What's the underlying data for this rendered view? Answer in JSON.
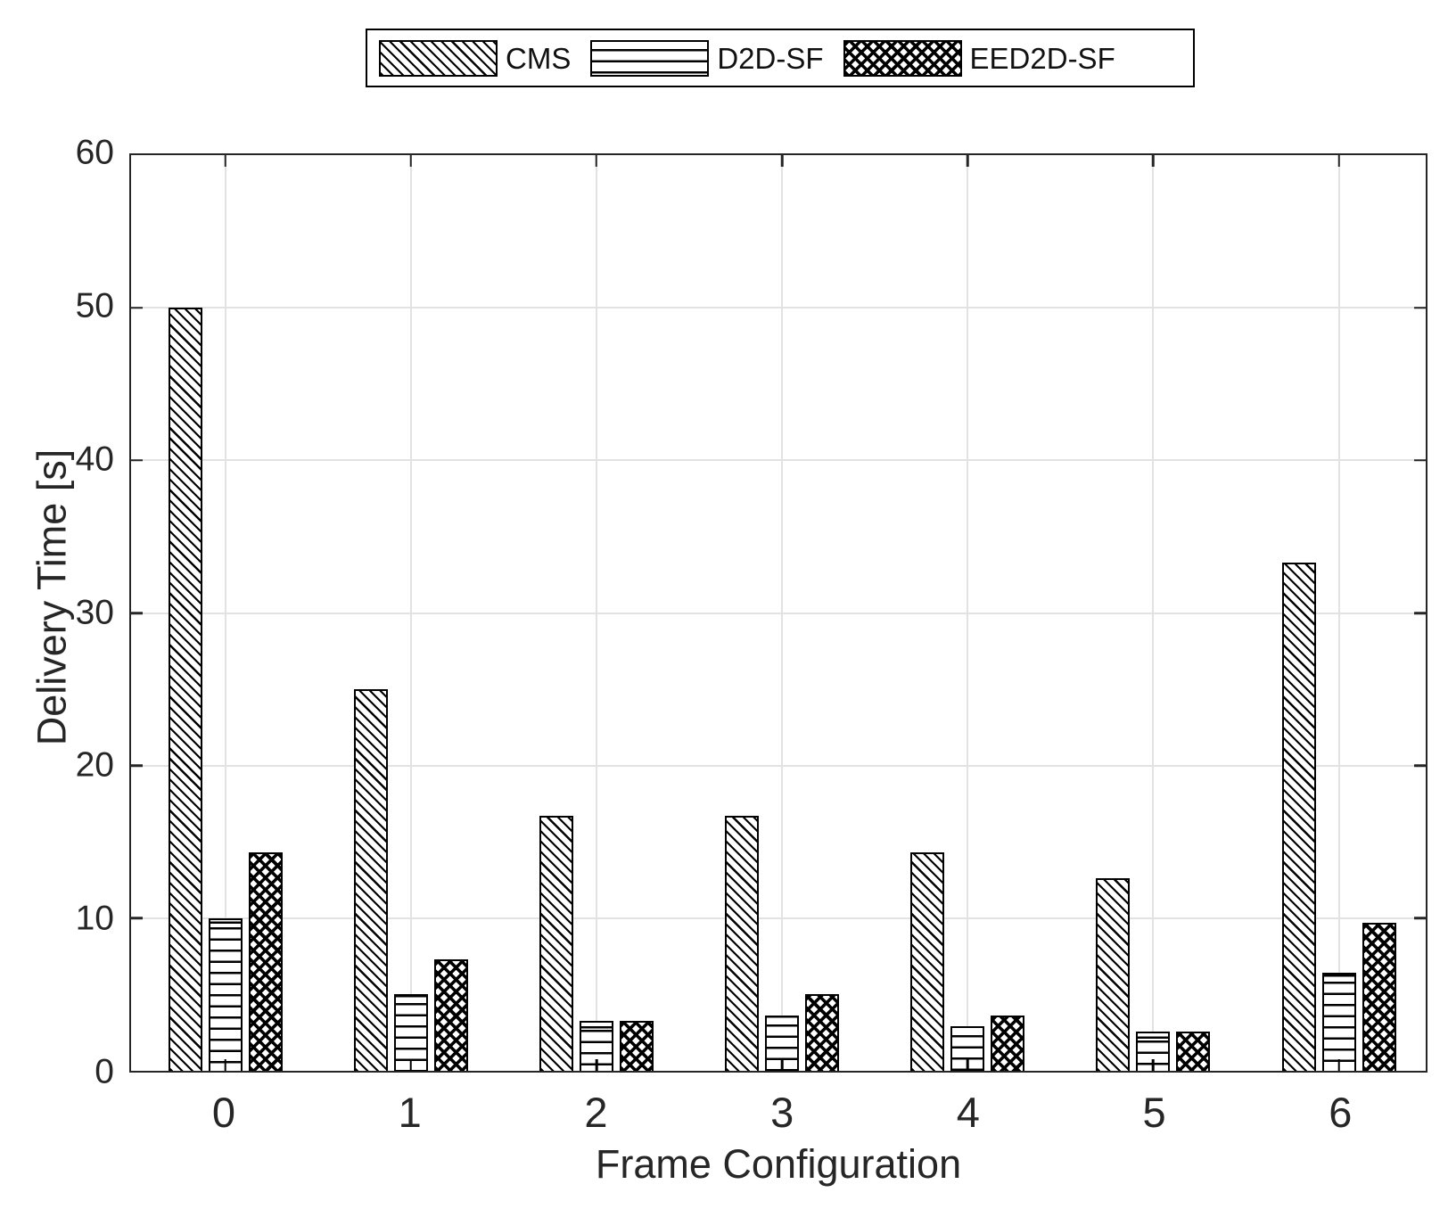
{
  "chart_data": {
    "type": "bar",
    "title": "",
    "xlabel": "Frame Configuration",
    "ylabel": "Delivery Time [s]",
    "categories": [
      "0",
      "1",
      "2",
      "3",
      "4",
      "5",
      "6"
    ],
    "series": [
      {
        "name": "CMS",
        "pattern": "diagonal-hatch",
        "values": [
          50.0,
          25.0,
          16.7,
          16.7,
          14.3,
          12.6,
          33.3
        ]
      },
      {
        "name": "D2D-SF",
        "pattern": "horizontal-lines",
        "values": [
          10.0,
          5.0,
          3.3,
          3.6,
          2.9,
          2.6,
          6.4
        ]
      },
      {
        "name": "EED2D-SF",
        "pattern": "crosshatch",
        "values": [
          14.3,
          7.3,
          3.3,
          5.0,
          3.6,
          2.6,
          9.7
        ]
      }
    ],
    "y_ticks": [
      0,
      10,
      20,
      30,
      40,
      50,
      60
    ],
    "ylim": [
      0,
      60
    ],
    "grid": true,
    "legend_position": "top-center",
    "bar_fill": "#ffffff",
    "bar_border": "#000000"
  },
  "legend": {
    "items": [
      {
        "label": "CMS",
        "pattern": "diagonal-hatch"
      },
      {
        "label": "D2D-SF",
        "pattern": "horizontal-lines"
      },
      {
        "label": "EED2D-SF",
        "pattern": "crosshatch"
      }
    ]
  },
  "colors": {
    "grid": "#e2e2e2",
    "axis_frame": "#262626",
    "text": "#262626",
    "background": "#ffffff"
  }
}
